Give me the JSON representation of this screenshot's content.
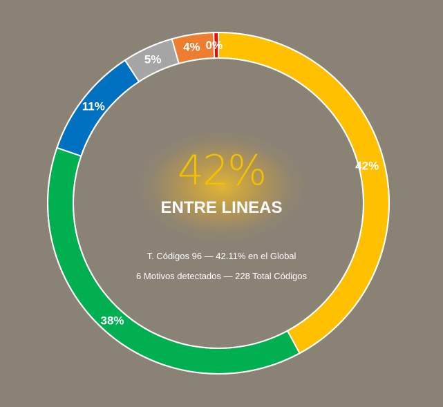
{
  "chart_data": {
    "type": "pie",
    "variant": "donut",
    "slices": [
      {
        "label": "42%",
        "value": 42.11,
        "color": "#ffc000"
      },
      {
        "label": "38%",
        "value": 38.16,
        "color": "#00b050"
      },
      {
        "label": "11%",
        "value": 10.53,
        "color": "#0070c0"
      },
      {
        "label": "5%",
        "value": 4.82,
        "color": "#a5a5a5"
      },
      {
        "label": "4%",
        "value": 3.95,
        "color": "#ed7d31"
      },
      {
        "label": "0%",
        "value": 0.44,
        "color": "#ff0000"
      }
    ]
  },
  "center": {
    "percent": "42%",
    "title": "ENTRE LINEAS",
    "line1": "T. Códigos 96 — 42.11% en el Global",
    "line2": "6 Motivos detectados — 228 Total Códigos"
  },
  "colors": {
    "background": "#8a8275",
    "accent": "#f2c200",
    "separator": "#ffffff"
  }
}
